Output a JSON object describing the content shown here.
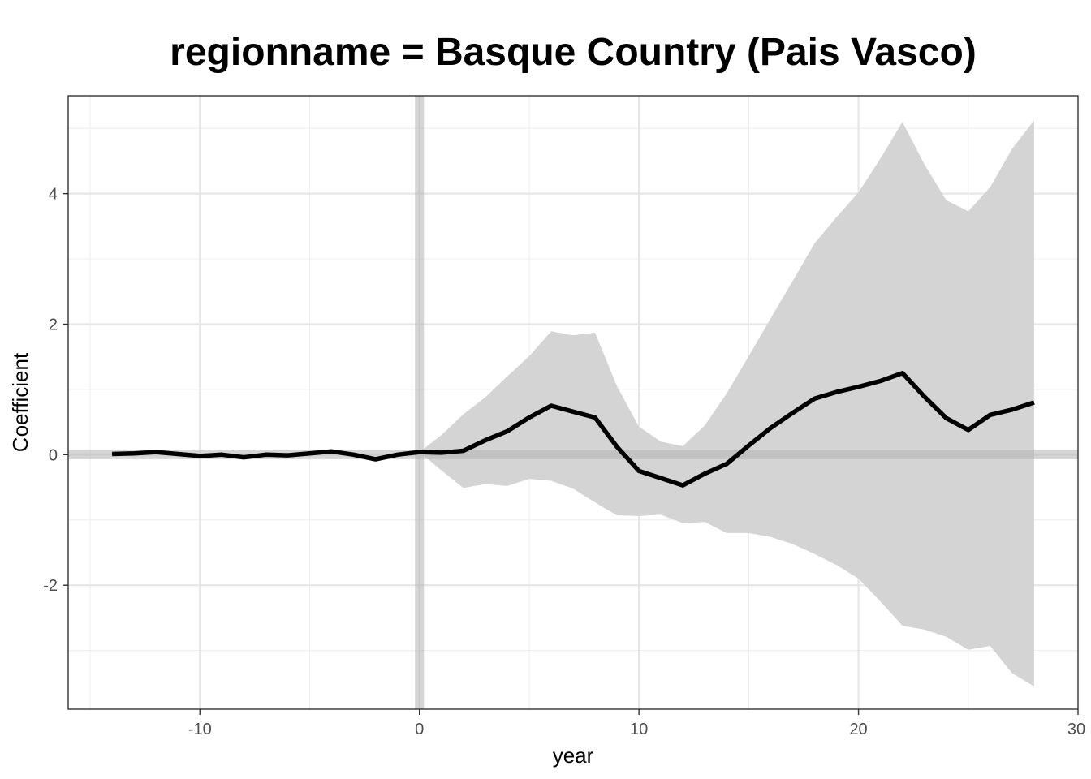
{
  "chart_data": {
    "type": "line",
    "title": "regionname = Basque Country (Pais Vasco)",
    "xlabel": "year",
    "ylabel": "Coefficient",
    "xlim": [
      -16,
      30
    ],
    "ylim": [
      -3.9,
      5.5
    ],
    "x_ticks": [
      -10,
      0,
      10,
      20,
      30
    ],
    "x_tick_labels": [
      "-10",
      "0",
      "10",
      "20",
      "30"
    ],
    "y_ticks": [
      -2,
      0,
      2,
      4
    ],
    "y_tick_labels": [
      "-2",
      "0",
      "2",
      "4"
    ],
    "grid": true,
    "reference_lines": {
      "x": 0,
      "y": 0
    },
    "series": [
      {
        "x": [
          -14,
          -13,
          -12,
          -11,
          -10,
          -9,
          -8,
          -7,
          -6,
          -5,
          -4,
          -3,
          -2,
          -1,
          0,
          1,
          2,
          3,
          4,
          5,
          6,
          7,
          8,
          9,
          10,
          11,
          12,
          13,
          14,
          15,
          16,
          17,
          18,
          19,
          20,
          21,
          22,
          23,
          24,
          25,
          26,
          27,
          28
        ],
        "y": [
          0.01,
          0.02,
          0.04,
          0.01,
          -0.02,
          0.0,
          -0.04,
          0.0,
          -0.01,
          0.02,
          0.05,
          0.0,
          -0.07,
          0.0,
          0.04,
          0.03,
          0.06,
          0.22,
          0.36,
          0.57,
          0.75,
          0.66,
          0.57,
          0.12,
          -0.25,
          -0.36,
          -0.47,
          -0.29,
          -0.14,
          0.14,
          0.41,
          0.64,
          0.86,
          0.96,
          1.04,
          1.13,
          1.25,
          0.89,
          0.56,
          0.38,
          0.61,
          0.69,
          0.8
        ],
        "lower": [
          0.01,
          0.02,
          0.04,
          0.01,
          -0.02,
          0.0,
          -0.04,
          0.0,
          -0.01,
          0.02,
          0.05,
          0.0,
          -0.07,
          0.0,
          0.04,
          -0.24,
          -0.51,
          -0.45,
          -0.48,
          -0.37,
          -0.4,
          -0.52,
          -0.73,
          -0.93,
          -0.94,
          -0.92,
          -1.05,
          -1.03,
          -1.2,
          -1.2,
          -1.26,
          -1.37,
          -1.52,
          -1.69,
          -1.9,
          -2.25,
          -2.62,
          -2.68,
          -2.79,
          -2.99,
          -2.93,
          -3.35,
          -3.55
        ],
        "upper": [
          0.01,
          0.02,
          0.04,
          0.01,
          -0.02,
          0.0,
          -0.04,
          0.0,
          -0.01,
          0.02,
          0.05,
          0.0,
          -0.07,
          0.0,
          0.04,
          0.3,
          0.62,
          0.88,
          1.2,
          1.51,
          1.89,
          1.83,
          1.87,
          1.05,
          0.43,
          0.2,
          0.13,
          0.45,
          0.94,
          1.51,
          2.09,
          2.66,
          3.24,
          3.64,
          4.02,
          4.54,
          5.1,
          4.45,
          3.9,
          3.73,
          4.1,
          4.69,
          5.12
        ]
      }
    ],
    "colors": {
      "line": "#000000",
      "ribbon": "#d4d4d4",
      "reference": "#b3b3b3",
      "grid_major": "#e6e6e6",
      "grid_minor": "#f0f0f0",
      "frame": "#333333"
    }
  }
}
